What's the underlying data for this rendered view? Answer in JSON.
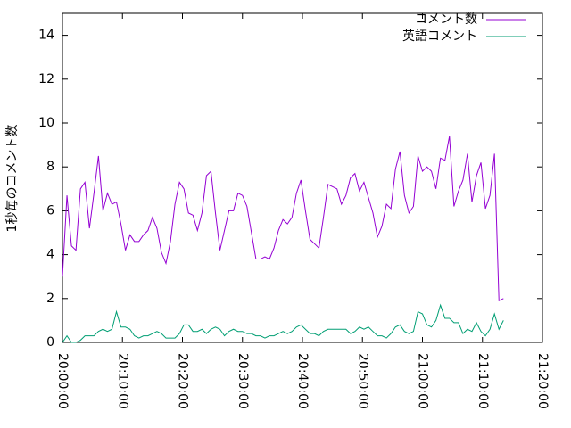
{
  "chart_data": {
    "type": "line",
    "y_label": "1秒毎のコメント数",
    "x": [
      "20:00:00",
      "20:00:45",
      "20:01:30",
      "20:02:15",
      "20:03:00",
      "20:03:45",
      "20:04:30",
      "20:05:15",
      "20:06:00",
      "20:06:45",
      "20:07:30",
      "20:08:15",
      "20:09:00",
      "20:09:45",
      "20:10:30",
      "20:11:15",
      "20:12:00",
      "20:12:45",
      "20:13:30",
      "20:14:15",
      "20:15:00",
      "20:15:45",
      "20:16:30",
      "20:17:15",
      "20:18:00",
      "20:18:45",
      "20:19:30",
      "20:20:15",
      "20:21:00",
      "20:21:45",
      "20:22:30",
      "20:23:15",
      "20:24:00",
      "20:24:45",
      "20:25:30",
      "20:26:15",
      "20:27:00",
      "20:27:45",
      "20:28:30",
      "20:29:15",
      "20:30:00",
      "20:30:45",
      "20:31:30",
      "20:32:15",
      "20:33:00",
      "20:33:45",
      "20:34:30",
      "20:35:15",
      "20:36:00",
      "20:36:45",
      "20:37:30",
      "20:38:15",
      "20:39:00",
      "20:39:45",
      "20:40:30",
      "20:41:15",
      "20:42:00",
      "20:42:45",
      "20:43:30",
      "20:44:15",
      "20:45:00",
      "20:45:45",
      "20:46:30",
      "20:47:15",
      "20:48:00",
      "20:48:45",
      "20:49:30",
      "20:50:15",
      "20:51:00",
      "20:51:45",
      "20:52:30",
      "20:53:15",
      "20:54:00",
      "20:54:45",
      "20:55:30",
      "20:56:15",
      "20:57:00",
      "20:57:45",
      "20:58:30",
      "20:59:15",
      "21:00:00",
      "21:00:45",
      "21:01:30",
      "21:02:15",
      "21:03:00",
      "21:03:45",
      "21:04:30",
      "21:05:15",
      "21:06:00",
      "21:06:45",
      "21:07:30",
      "21:08:15",
      "21:09:00",
      "21:09:45",
      "21:10:30",
      "21:11:15",
      "21:12:00",
      "21:12:45",
      "21:13:30"
    ],
    "series": [
      {
        "name": "コメント数",
        "color": "#9400d3",
        "values": [
          3.0,
          6.7,
          4.4,
          4.2,
          7.0,
          7.3,
          5.2,
          6.8,
          8.5,
          6.0,
          6.8,
          6.3,
          6.4,
          5.4,
          4.2,
          4.9,
          4.6,
          4.6,
          4.9,
          5.1,
          5.7,
          5.2,
          4.1,
          3.6,
          4.6,
          6.3,
          7.3,
          7.0,
          5.9,
          5.8,
          5.1,
          5.9,
          7.6,
          7.8,
          5.9,
          4.2,
          5.1,
          6.0,
          6.0,
          6.8,
          6.7,
          6.2,
          5.0,
          3.8,
          3.8,
          3.9,
          3.8,
          4.3,
          5.1,
          5.6,
          5.4,
          5.7,
          6.8,
          7.4,
          6.0,
          4.7,
          4.5,
          4.3,
          5.7,
          7.2,
          7.1,
          7.0,
          6.3,
          6.7,
          7.5,
          7.7,
          6.9,
          7.3,
          6.6,
          5.9,
          4.8,
          5.3,
          6.3,
          6.1,
          7.9,
          8.7,
          6.7,
          5.9,
          6.2,
          8.5,
          7.8,
          8.0,
          7.8,
          7.0,
          8.4,
          8.3,
          9.4,
          6.2,
          6.9,
          7.4,
          8.6,
          6.4,
          7.6,
          8.2,
          6.1,
          6.7,
          8.6,
          1.9,
          2.0
        ]
      },
      {
        "name": "英語コメント",
        "color": "#009e73",
        "values": [
          0.0,
          0.3,
          0.0,
          0.0,
          0.1,
          0.3,
          0.3,
          0.3,
          0.5,
          0.6,
          0.5,
          0.6,
          1.4,
          0.7,
          0.7,
          0.6,
          0.3,
          0.2,
          0.3,
          0.3,
          0.4,
          0.5,
          0.4,
          0.2,
          0.2,
          0.2,
          0.4,
          0.8,
          0.8,
          0.5,
          0.5,
          0.6,
          0.4,
          0.6,
          0.7,
          0.6,
          0.3,
          0.5,
          0.6,
          0.5,
          0.5,
          0.4,
          0.4,
          0.3,
          0.3,
          0.2,
          0.3,
          0.3,
          0.4,
          0.5,
          0.4,
          0.5,
          0.7,
          0.8,
          0.6,
          0.4,
          0.4,
          0.3,
          0.5,
          0.6,
          0.6,
          0.6,
          0.6,
          0.6,
          0.4,
          0.5,
          0.7,
          0.6,
          0.7,
          0.5,
          0.3,
          0.3,
          0.2,
          0.4,
          0.7,
          0.8,
          0.5,
          0.4,
          0.5,
          1.4,
          1.3,
          0.8,
          0.7,
          1.0,
          1.7,
          1.1,
          1.1,
          0.9,
          0.9,
          0.4,
          0.6,
          0.5,
          0.9,
          0.5,
          0.3,
          0.6,
          1.3,
          0.6,
          1.0
        ]
      }
    ],
    "xlim": [
      "20:00:00",
      "21:20:00"
    ],
    "xticks": [
      "20:00:00",
      "20:10:00",
      "20:20:00",
      "20:30:00",
      "20:40:00",
      "20:50:00",
      "21:00:00",
      "21:10:00",
      "21:20:00"
    ],
    "ylim": [
      0,
      15
    ],
    "yticks": [
      0,
      2,
      4,
      6,
      8,
      10,
      12,
      14
    ],
    "legend": "top-right"
  }
}
